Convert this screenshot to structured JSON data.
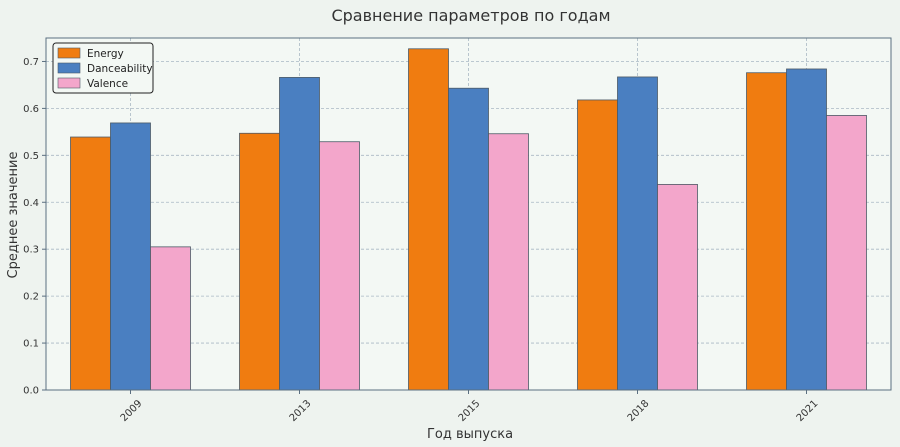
{
  "chart_data": {
    "type": "bar",
    "title": "Сравнение параметров по годам",
    "xlabel": "Год выпуска",
    "ylabel": "Среднее значение",
    "categories": [
      "2009",
      "2013",
      "2015",
      "2018",
      "2021"
    ],
    "series": [
      {
        "name": "Energy",
        "color": "#f07c10",
        "values": [
          0.539,
          0.547,
          0.727,
          0.618,
          0.676
        ]
      },
      {
        "name": "Danceability",
        "color": "#4a7fc1",
        "values": [
          0.569,
          0.666,
          0.643,
          0.667,
          0.684
        ]
      },
      {
        "name": "Valence",
        "color": "#f3a6cb",
        "values": [
          0.305,
          0.529,
          0.546,
          0.438,
          0.585
        ]
      }
    ],
    "ylim": [
      0,
      0.75
    ],
    "yticks": [
      0.0,
      0.1,
      0.2,
      0.3,
      0.4,
      0.5,
      0.6,
      0.7
    ],
    "ytick_labels": [
      "0.0",
      "0.1",
      "0.2",
      "0.3",
      "0.4",
      "0.5",
      "0.6",
      "0.7"
    ],
    "grid": true,
    "legend_position": "top-left",
    "colors": {
      "background": "#eef3ef",
      "plot_background": "#f3f8f4",
      "grid": "#a9b8c4",
      "axes": "#5b6f80",
      "bar_edge": "#4d5a66"
    }
  }
}
